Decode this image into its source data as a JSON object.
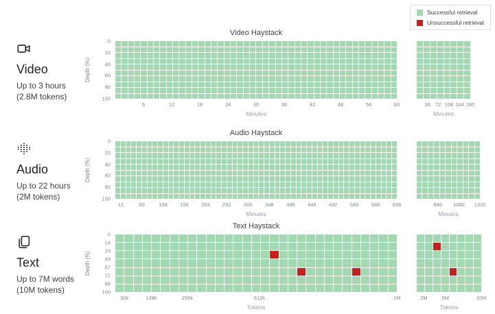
{
  "colors": {
    "success": "#a3d9b1",
    "fail": "#c5221f",
    "background": "#ffffff"
  },
  "legend": {
    "items": [
      {
        "label": "Successful retrieval",
        "color": "#a3d9b1"
      },
      {
        "label": "Unsuccessful retrieval",
        "color": "#c5221f"
      }
    ]
  },
  "chart_data": [
    {
      "type": "heatmap",
      "id": "video",
      "icon": "video-camera-icon",
      "modality": "Video",
      "subtitle1": "Up to 3 hours",
      "subtitle2": "(2.8M tokens)",
      "title": "Video Haystack",
      "ylabel": "Depth (%)",
      "yticks": [
        "0",
        "20",
        "40",
        "60",
        "80",
        "100"
      ],
      "main": {
        "xlabel": "Minutes",
        "xmin": 0,
        "xmax": 60,
        "cols": 44,
        "rows": 10,
        "ticks": [
          {
            "v": 6,
            "label": "6"
          },
          {
            "v": 12,
            "label": "12"
          },
          {
            "v": 18,
            "label": "18"
          },
          {
            "v": 24,
            "label": "24"
          },
          {
            "v": 30,
            "label": "30"
          },
          {
            "v": 36,
            "label": "36"
          },
          {
            "v": 42,
            "label": "42"
          },
          {
            "v": 48,
            "label": "48"
          },
          {
            "v": 54,
            "label": "54"
          },
          {
            "v": 60,
            "label": "60"
          }
        ],
        "fails": []
      },
      "side": {
        "xlabel": "Minutes",
        "xmin": 0,
        "xmax": 180,
        "cols": 8,
        "rows": 10,
        "ticks": [
          {
            "v": 36,
            "label": "36"
          },
          {
            "v": 72,
            "label": "72"
          },
          {
            "v": 108,
            "label": "108"
          },
          {
            "v": 144,
            "label": "144"
          },
          {
            "v": 180,
            "label": "180"
          }
        ],
        "fails": []
      }
    },
    {
      "type": "heatmap",
      "id": "audio",
      "icon": "waveform-icon",
      "modality": "Audio",
      "subtitle1": "Up to 22 hours",
      "subtitle2": "(2M tokens)",
      "title": "Audio Haystack",
      "ylabel": "Depth (%)",
      "yticks": [
        "0",
        "20",
        "40",
        "60",
        "80",
        "100"
      ],
      "main": {
        "xlabel": "Minutes",
        "xmin": 0,
        "xmax": 636,
        "cols": 53,
        "rows": 10,
        "ticks": [
          {
            "v": 12,
            "label": "12"
          },
          {
            "v": 60,
            "label": "60"
          },
          {
            "v": 108,
            "label": "108"
          },
          {
            "v": 156,
            "label": "156"
          },
          {
            "v": 204,
            "label": "204"
          },
          {
            "v": 252,
            "label": "252"
          },
          {
            "v": 300,
            "label": "300"
          },
          {
            "v": 348,
            "label": "348"
          },
          {
            "v": 396,
            "label": "396"
          },
          {
            "v": 444,
            "label": "444"
          },
          {
            "v": 492,
            "label": "492"
          },
          {
            "v": 540,
            "label": "540"
          },
          {
            "v": 588,
            "label": "588"
          },
          {
            "v": 636,
            "label": "636"
          }
        ],
        "fails": []
      },
      "side": {
        "xlabel": "Minutes",
        "xmin": 600,
        "xmax": 1320,
        "cols": 11,
        "rows": 10,
        "ticks": [
          {
            "v": 840,
            "label": "840"
          },
          {
            "v": 1080,
            "label": "1080"
          },
          {
            "v": 1320,
            "label": "1320"
          }
        ],
        "fails": []
      }
    },
    {
      "type": "heatmap",
      "id": "text",
      "icon": "document-icon",
      "modality": "Text",
      "subtitle1": "Up to 7M words",
      "subtitle2": "(10M tokens)",
      "title": "Text Haystack",
      "ylabel": "Depth (%)",
      "yticks": [
        "0",
        "14",
        "29",
        "43",
        "57",
        "71",
        "86",
        "100"
      ],
      "main": {
        "xlabel": "Tokens",
        "xmin": 0,
        "xmax": 1000,
        "cols": 31,
        "rows": 7,
        "ticks": [
          {
            "v": 32,
            "label": "32k"
          },
          {
            "v": 128,
            "label": "128k"
          },
          {
            "v": 256,
            "label": "256k"
          },
          {
            "v": 512,
            "label": "512k"
          },
          {
            "v": 1000,
            "label": "1M"
          }
        ],
        "fails": [
          [
            17,
            2
          ],
          [
            20,
            4
          ],
          [
            26,
            4
          ]
        ]
      },
      "side": {
        "xlabel": "Tokens",
        "xmin": 1,
        "xmax": 10,
        "cols": 8,
        "rows": 7,
        "ticks": [
          {
            "v": 2,
            "label": "2M"
          },
          {
            "v": 5,
            "label": "5M"
          },
          {
            "v": 10,
            "label": "10M"
          }
        ],
        "fails": [
          [
            2,
            1
          ],
          [
            4,
            4
          ]
        ]
      }
    }
  ]
}
